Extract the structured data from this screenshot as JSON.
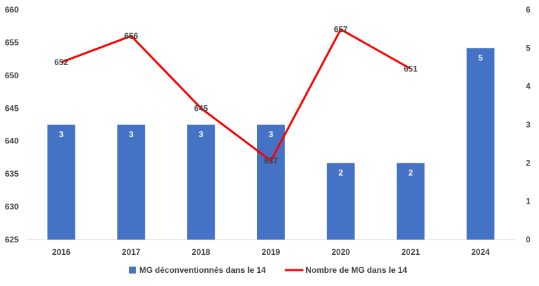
{
  "chart_data": {
    "type": "bar+line",
    "categories": [
      "2016",
      "2017",
      "2018",
      "2019",
      "2020",
      "2021",
      "2024"
    ],
    "series": [
      {
        "name": "MG déconventionnés dans le 14",
        "type": "bar",
        "axis": "right",
        "values": [
          3,
          3,
          3,
          3,
          2,
          2,
          5
        ],
        "color": "#4472C4"
      },
      {
        "name": "Nombre de MG dans le 14",
        "type": "line",
        "axis": "left",
        "values": [
          652,
          656,
          645,
          637,
          657,
          651,
          null
        ],
        "color": "#FF0000"
      }
    ],
    "y_left": {
      "ylim": [
        625,
        660
      ],
      "ticks": [
        625,
        630,
        635,
        640,
        645,
        650,
        655,
        660
      ]
    },
    "y_right": {
      "ylim": [
        0,
        6
      ],
      "ticks": [
        0,
        1,
        2,
        3,
        4,
        5,
        6
      ]
    },
    "grid": false,
    "legend": "bottom"
  }
}
